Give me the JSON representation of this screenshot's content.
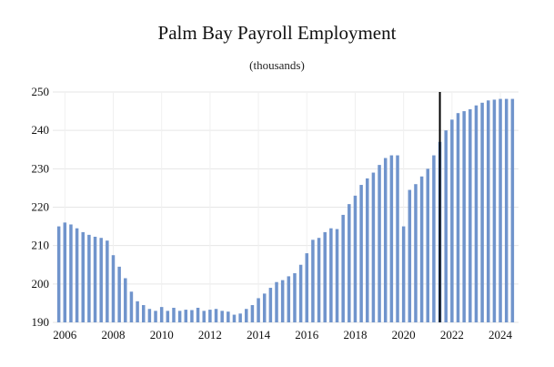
{
  "chart_data": {
    "type": "bar",
    "title": "Palm Bay Payroll Employment",
    "subtitle": "(thousands)",
    "xlabel": "",
    "ylabel": "",
    "ylim": [
      190,
      250
    ],
    "y_ticks": [
      190,
      200,
      210,
      220,
      230,
      240,
      250
    ],
    "x_ticks": [
      "2006",
      "2008",
      "2010",
      "2012",
      "2014",
      "2016",
      "2018",
      "2020",
      "2022",
      "2024"
    ],
    "x_tick_at": [
      2006.0,
      2008.0,
      2010.0,
      2012.0,
      2014.0,
      2016.0,
      2018.0,
      2020.0,
      2022.0,
      2024.0
    ],
    "x_range": [
      2005.5,
      2024.75
    ],
    "grid": true,
    "bar_color": "#7094cc",
    "marker": {
      "x": 2021.5,
      "color": "#000000"
    },
    "series": [
      {
        "x": [
          2005.75,
          2006.0,
          2006.25,
          2006.5,
          2006.75,
          2007.0,
          2007.25,
          2007.5,
          2007.75,
          2008.0,
          2008.25,
          2008.5,
          2008.75,
          2009.0,
          2009.25,
          2009.5,
          2009.75,
          2010.0,
          2010.25,
          2010.5,
          2010.75,
          2011.0,
          2011.25,
          2011.5,
          2011.75,
          2012.0,
          2012.25,
          2012.5,
          2012.75,
          2013.0,
          2013.25,
          2013.5,
          2013.75,
          2014.0,
          2014.25,
          2014.5,
          2014.75,
          2015.0,
          2015.25,
          2015.5,
          2015.75,
          2016.0,
          2016.25,
          2016.5,
          2016.75,
          2017.0,
          2017.25,
          2017.5,
          2017.75,
          2018.0,
          2018.25,
          2018.5,
          2018.75,
          2019.0,
          2019.25,
          2019.5,
          2019.75,
          2020.0,
          2020.25,
          2020.5,
          2020.75,
          2021.0,
          2021.25,
          2021.5,
          2021.75,
          2022.0,
          2022.25,
          2022.5,
          2022.75,
          2023.0,
          2023.25,
          2023.5,
          2023.75,
          2024.0,
          2024.25,
          2024.5
        ],
        "values": [
          215.0,
          216.0,
          215.5,
          214.5,
          213.5,
          212.8,
          212.3,
          212.0,
          211.3,
          207.5,
          204.5,
          201.5,
          198.0,
          195.5,
          194.5,
          193.5,
          193.0,
          194.0,
          193.0,
          193.8,
          193.0,
          193.3,
          193.2,
          193.8,
          193.0,
          193.3,
          193.5,
          193.0,
          192.8,
          192.0,
          192.3,
          193.5,
          194.5,
          196.3,
          197.5,
          199.0,
          200.5,
          201.0,
          202.0,
          202.8,
          205.0,
          208.0,
          211.5,
          212.0,
          213.5,
          214.5,
          214.3,
          218.0,
          220.8,
          223.0,
          225.8,
          227.5,
          229.0,
          231.0,
          232.8,
          233.5,
          233.5,
          215.0,
          224.5,
          226.0,
          228.0,
          230.0,
          233.5,
          237.0,
          240.0,
          242.8,
          244.5,
          245.0,
          245.5,
          246.5,
          247.2,
          247.8,
          248.0,
          248.2,
          248.2,
          248.2
        ]
      }
    ]
  }
}
